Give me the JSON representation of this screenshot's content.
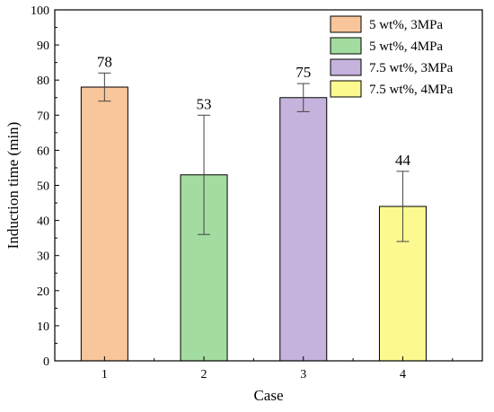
{
  "chart_data": {
    "type": "bar",
    "xlabel": "Case",
    "ylabel": "Induction time (min)",
    "categories": [
      "1",
      "2",
      "3",
      "4"
    ],
    "values": [
      78,
      53,
      75,
      44
    ],
    "data_labels": [
      "78",
      "53",
      "75",
      "44"
    ],
    "error_bars": [
      {
        "low": 74,
        "high": 82
      },
      {
        "low": 36,
        "high": 70
      },
      {
        "low": 71,
        "high": 79
      },
      {
        "low": 34,
        "high": 54
      }
    ],
    "legend_labels": [
      "5 wt%, 3MPa",
      "5 wt%, 4MPa",
      "7.5 wt%, 3MPa",
      "7.5 wt%, 4MPa"
    ],
    "colors": [
      "#f9c59a",
      "#a3dca0",
      "#c5b2dd",
      "#fbf98f"
    ],
    "ylim": [
      0,
      100
    ],
    "yticks": [
      "0",
      "10",
      "20",
      "30",
      "40",
      "50",
      "60",
      "70",
      "80",
      "90",
      "100"
    ],
    "xlim": [
      0.5,
      4.8
    ],
    "legend_position": "top-right",
    "grid": false
  }
}
